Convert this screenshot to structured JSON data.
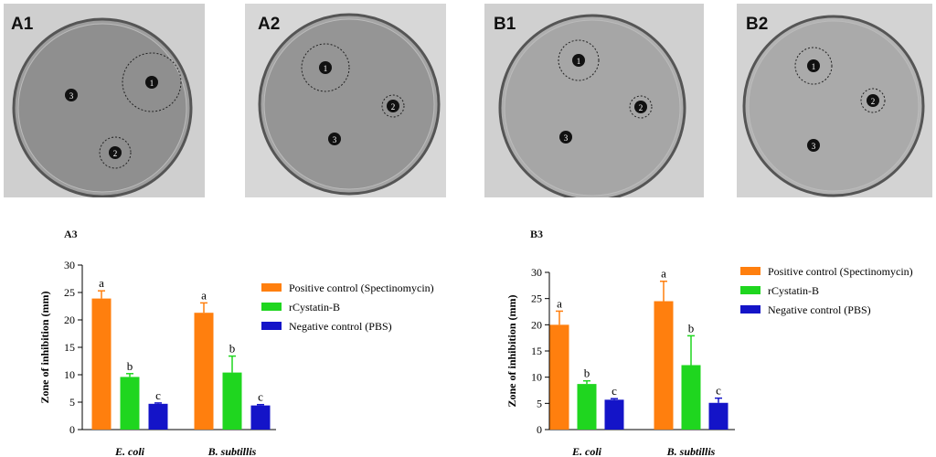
{
  "plates": [
    {
      "label": "A1",
      "markers": [
        "1",
        "2",
        "3"
      ]
    },
    {
      "label": "A2",
      "markers": [
        "1",
        "2",
        "3"
      ]
    },
    {
      "label": "B1",
      "markers": [
        "1",
        "2",
        "3"
      ]
    },
    {
      "label": "B2",
      "markers": [
        "1",
        "2",
        "3"
      ]
    }
  ],
  "colors": {
    "positive": "#ff7f0e",
    "rcystatin": "#1fd61f",
    "negative": "#1414c8",
    "plate_bg": "#d2d2d2"
  },
  "chart_data": [
    {
      "type": "bar",
      "panel_label": "A3",
      "categories": [
        "E. coli",
        "B. subtillis"
      ],
      "ylabel": "Zone of inhibition (mm)",
      "ylim": [
        0,
        30
      ],
      "yticks": [
        "0",
        "5",
        "10",
        "15",
        "20",
        "25",
        "30"
      ],
      "series": [
        {
          "name": "Positive control (Spectinomycin)",
          "values": [
            23.9,
            21.3
          ],
          "errors": [
            1.4,
            1.8
          ],
          "letters": [
            "a",
            "a"
          ],
          "color": "#ff7f0e"
        },
        {
          "name": "rCystatin-B",
          "values": [
            9.6,
            10.4
          ],
          "errors": [
            0.6,
            3.0
          ],
          "letters": [
            "b",
            "b"
          ],
          "color": "#1fd61f"
        },
        {
          "name": "Negative control (PBS)",
          "values": [
            4.7,
            4.4
          ],
          "errors": [
            0.15,
            0.15
          ],
          "letters": [
            "c",
            "c"
          ],
          "color": "#1414c8"
        }
      ]
    },
    {
      "type": "bar",
      "panel_label": "B3",
      "categories": [
        "E. coli",
        "B. subtillis"
      ],
      "ylabel": "Zone of inhibition (mm)",
      "ylim": [
        0,
        30
      ],
      "yticks": [
        "0",
        "5",
        "10",
        "15",
        "20",
        "25",
        "30"
      ],
      "series": [
        {
          "name": "Positive control (Spectinomycin)",
          "values": [
            20.0,
            24.5
          ],
          "errors": [
            2.6,
            3.8
          ],
          "letters": [
            "a",
            "a"
          ],
          "color": "#ff7f0e"
        },
        {
          "name": "rCystatin-B",
          "values": [
            8.7,
            12.3
          ],
          "errors": [
            0.6,
            5.6
          ],
          "letters": [
            "b",
            "b"
          ],
          "color": "#1fd61f"
        },
        {
          "name": "Negative control (PBS)",
          "values": [
            5.7,
            5.1
          ],
          "errors": [
            0.2,
            0.9
          ],
          "letters": [
            "c",
            "c"
          ],
          "color": "#1414c8"
        }
      ]
    }
  ]
}
